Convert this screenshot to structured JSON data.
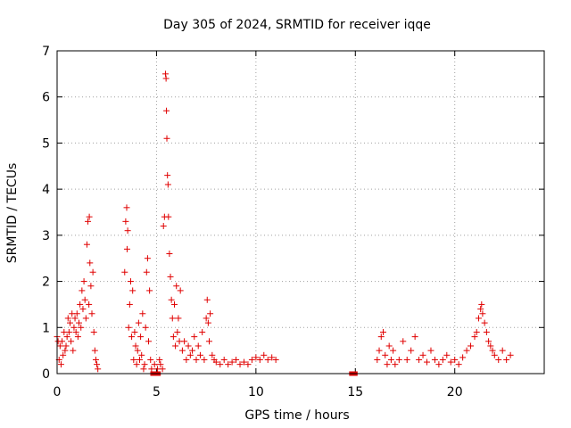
{
  "chart_data": {
    "type": "scatter",
    "title": "Day 305 of 2024, SRMTID for receiver iqqe",
    "xlabel": "GPS time / hours",
    "ylabel": "SRMTID / TECUs",
    "xlim": [
      0,
      24.5
    ],
    "ylim": [
      0,
      7
    ],
    "xticks": [
      0,
      5,
      10,
      15,
      20
    ],
    "yticks": [
      0,
      1,
      2,
      3,
      4,
      5,
      6,
      7
    ],
    "xtick_labels": [
      "0",
      "5",
      "10",
      "15",
      "20"
    ],
    "ytick_labels": [
      "0",
      "1",
      "2",
      "3",
      "4",
      "5",
      "6",
      "7"
    ],
    "grid": true,
    "marker": "plus",
    "color": "#e00000",
    "series": [
      {
        "name": "SRMTID",
        "x": [
          0.0,
          0.05,
          0.1,
          0.15,
          0.2,
          0.25,
          0.3,
          0.35,
          0.4,
          0.45,
          0.5,
          0.55,
          0.6,
          0.65,
          0.7,
          0.75,
          0.8,
          0.85,
          0.9,
          0.95,
          1.0,
          1.05,
          1.1,
          1.15,
          1.2,
          1.25,
          1.3,
          1.35,
          1.4,
          1.45,
          1.5,
          1.55,
          1.6,
          1.62,
          1.65,
          1.7,
          1.75,
          1.8,
          1.85,
          1.9,
          1.95,
          2.0,
          2.05,
          3.4,
          3.45,
          3.5,
          3.52,
          3.55,
          3.6,
          3.65,
          3.7,
          3.75,
          3.8,
          3.85,
          3.9,
          3.95,
          4.0,
          4.05,
          4.1,
          4.15,
          4.2,
          4.25,
          4.3,
          4.35,
          4.4,
          4.45,
          4.5,
          4.55,
          4.6,
          4.65,
          4.7,
          4.75,
          4.8,
          4.85,
          4.9,
          4.95,
          5.0,
          5.05,
          5.1,
          5.15,
          5.2,
          5.3,
          5.35,
          5.4,
          5.45,
          5.48,
          5.5,
          5.52,
          5.55,
          5.58,
          5.6,
          5.65,
          5.7,
          5.75,
          5.8,
          5.85,
          5.9,
          5.95,
          6.0,
          6.05,
          6.1,
          6.15,
          6.2,
          6.3,
          6.4,
          6.5,
          6.6,
          6.7,
          6.8,
          6.9,
          7.0,
          7.1,
          7.2,
          7.3,
          7.4,
          7.5,
          7.55,
          7.6,
          7.65,
          7.7,
          7.8,
          7.9,
          8.0,
          8.2,
          8.4,
          8.6,
          8.8,
          9.0,
          9.2,
          9.4,
          9.6,
          9.8,
          10.0,
          10.2,
          10.4,
          10.6,
          10.8,
          11.0,
          14.8,
          15.0,
          16.1,
          16.2,
          16.3,
          16.4,
          16.5,
          16.6,
          16.7,
          16.8,
          16.9,
          17.0,
          17.2,
          17.4,
          17.6,
          17.8,
          18.0,
          18.2,
          18.4,
          18.6,
          18.8,
          19.0,
          19.2,
          19.4,
          19.6,
          19.8,
          20.0,
          20.2,
          20.4,
          20.6,
          20.8,
          21.0,
          21.1,
          21.2,
          21.3,
          21.35,
          21.4,
          21.5,
          21.6,
          21.7,
          21.8,
          21.9,
          22.0,
          22.2,
          22.4,
          22.6,
          22.8
        ],
        "y": [
          0.8,
          0.7,
          0.3,
          0.6,
          0.2,
          0.7,
          0.4,
          0.9,
          0.5,
          0.6,
          0.8,
          1.2,
          0.9,
          1.1,
          0.7,
          1.3,
          0.5,
          1.0,
          1.2,
          0.9,
          1.3,
          0.8,
          1.1,
          1.5,
          1.0,
          1.8,
          1.4,
          2.0,
          1.6,
          1.2,
          2.8,
          3.3,
          1.5,
          3.4,
          2.4,
          1.9,
          1.3,
          2.2,
          0.9,
          0.5,
          0.3,
          0.2,
          0.1,
          2.2,
          3.3,
          3.6,
          2.7,
          3.1,
          1.0,
          1.5,
          2.0,
          0.8,
          1.8,
          0.3,
          0.9,
          0.6,
          0.2,
          0.5,
          1.1,
          0.3,
          0.8,
          0.4,
          1.3,
          0.1,
          0.2,
          1.0,
          2.2,
          2.5,
          0.7,
          1.8,
          0.3,
          0.1,
          0.0,
          0.0,
          0.2,
          0.0,
          0.0,
          0.1,
          0.0,
          0.3,
          0.2,
          0.1,
          3.2,
          3.4,
          6.5,
          6.4,
          5.7,
          5.1,
          4.3,
          4.1,
          3.4,
          2.6,
          2.1,
          1.6,
          1.2,
          0.8,
          1.5,
          0.6,
          1.9,
          0.9,
          1.2,
          0.7,
          1.8,
          0.5,
          0.7,
          0.3,
          0.6,
          0.4,
          0.5,
          0.8,
          0.3,
          0.6,
          0.4,
          0.9,
          0.3,
          1.2,
          1.6,
          1.1,
          0.7,
          1.3,
          0.4,
          0.3,
          0.25,
          0.2,
          0.3,
          0.2,
          0.25,
          0.3,
          0.2,
          0.25,
          0.2,
          0.3,
          0.35,
          0.3,
          0.4,
          0.3,
          0.35,
          0.3,
          0.0,
          0.0,
          0.3,
          0.5,
          0.8,
          0.9,
          0.4,
          0.2,
          0.6,
          0.3,
          0.5,
          0.2,
          0.3,
          0.7,
          0.3,
          0.5,
          0.8,
          0.3,
          0.4,
          0.25,
          0.5,
          0.3,
          0.2,
          0.3,
          0.4,
          0.25,
          0.3,
          0.2,
          0.35,
          0.5,
          0.6,
          0.8,
          0.9,
          1.2,
          1.4,
          1.5,
          1.3,
          1.1,
          0.9,
          0.7,
          0.6,
          0.5,
          0.4,
          0.3,
          0.5,
          0.3,
          0.4
        ]
      }
    ]
  }
}
